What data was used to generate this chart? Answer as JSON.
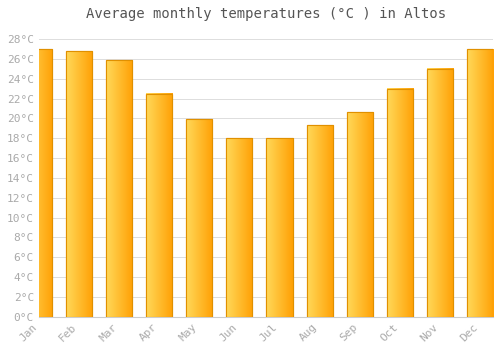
{
  "title": "Average monthly temperatures (°C ) in Altos",
  "months": [
    "Jan",
    "Feb",
    "Mar",
    "Apr",
    "May",
    "Jun",
    "Jul",
    "Aug",
    "Sep",
    "Oct",
    "Nov",
    "Dec"
  ],
  "values": [
    27.0,
    26.8,
    25.9,
    22.5,
    19.9,
    18.0,
    18.0,
    19.3,
    20.6,
    23.0,
    25.0,
    27.0
  ],
  "bar_color_left": "#FFD060",
  "bar_color_right": "#FFA000",
  "bar_edge_color": "#E09000",
  "ylim": [
    0,
    29
  ],
  "ytick_step": 2,
  "background_color": "#ffffff",
  "grid_color": "#dddddd",
  "title_fontsize": 10,
  "tick_fontsize": 8,
  "tick_color": "#aaaaaa",
  "title_color": "#555555"
}
